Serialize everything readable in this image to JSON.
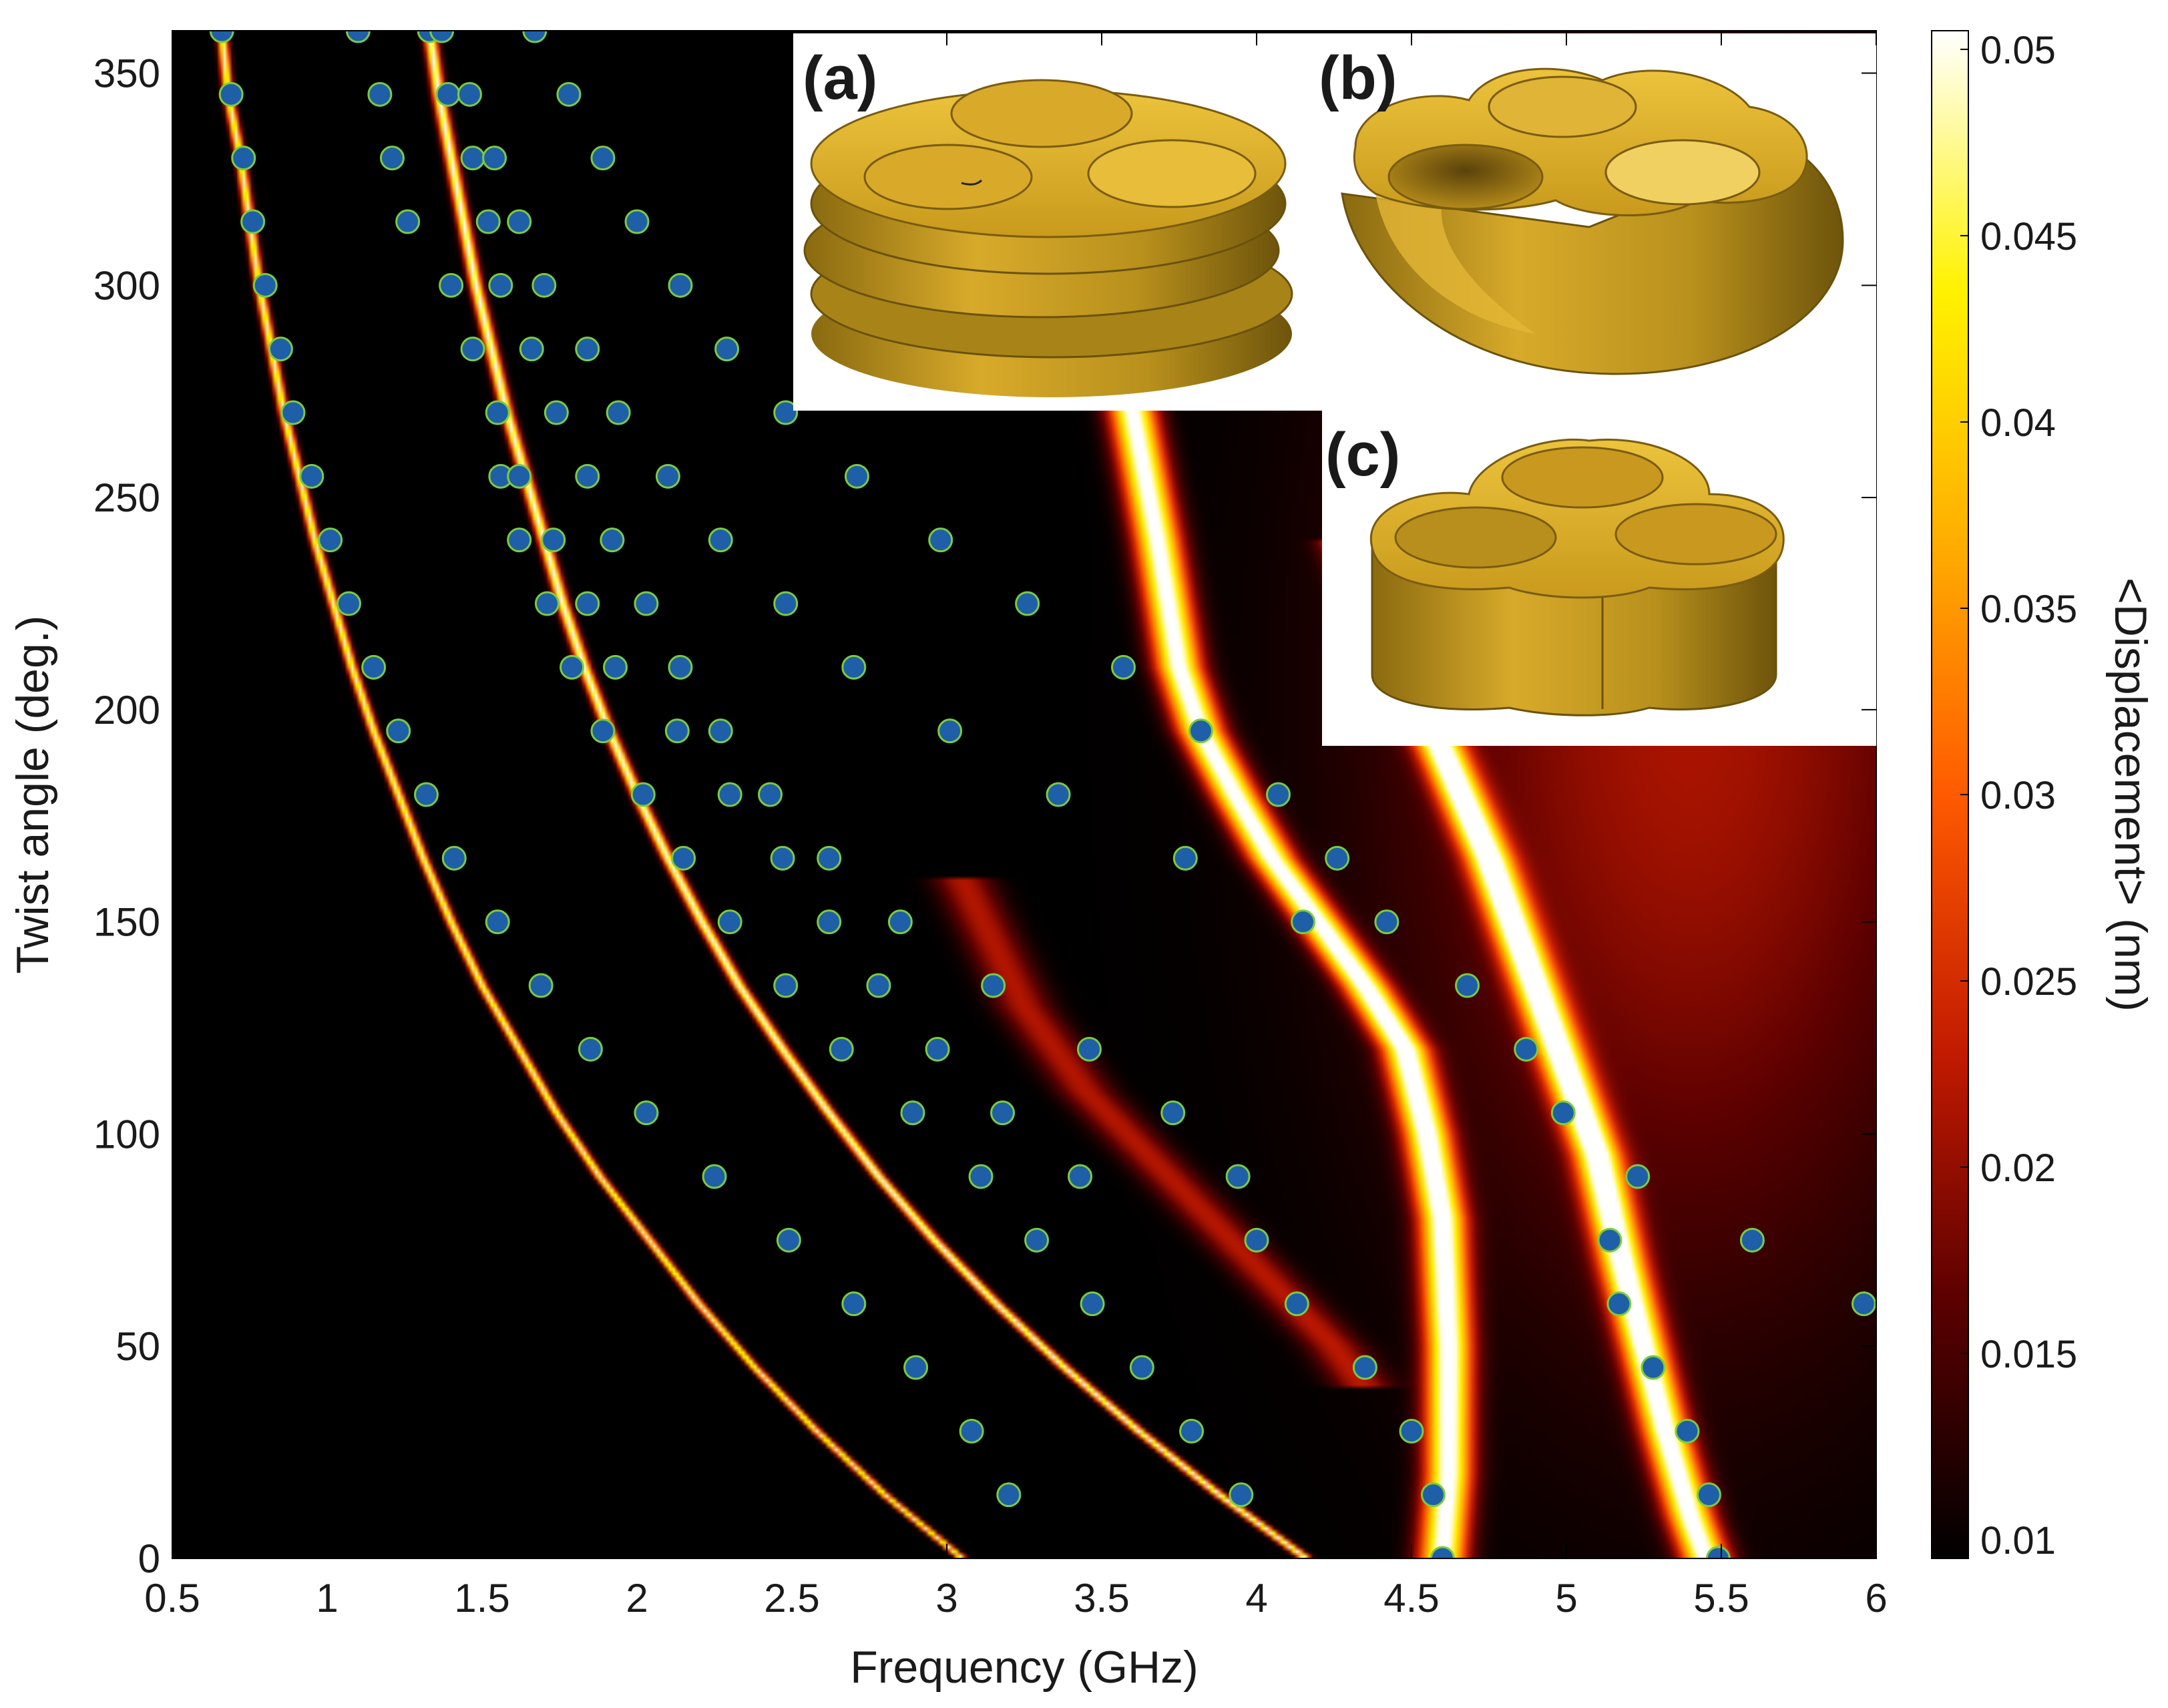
{
  "chart_data": {
    "type": "heatmap",
    "xlabel": "Frequency (GHz)",
    "ylabel": "Twist angle (deg.)",
    "colorbar_label": "<Displacement> (nm)",
    "xlim": [
      0.5,
      6
    ],
    "ylim": [
      0,
      360
    ],
    "xticks": [
      0.5,
      1,
      1.5,
      2,
      2.5,
      3,
      3.5,
      4,
      4.5,
      5,
      5.5,
      6
    ],
    "xtick_labels": [
      "0.5",
      "1",
      "1.5",
      "2",
      "2.5",
      "3",
      "3.5",
      "4",
      "4.5",
      "5",
      "5.5",
      "6"
    ],
    "yticks": [
      0,
      50,
      100,
      150,
      200,
      250,
      300,
      350
    ],
    "ytick_labels": [
      "0",
      "50",
      "100",
      "150",
      "200",
      "250",
      "300",
      "350"
    ],
    "colorbar_range": [
      0.0095,
      0.0505
    ],
    "colorbar_ticks": [
      0.01,
      0.015,
      0.02,
      0.025,
      0.03,
      0.035,
      0.04,
      0.045,
      0.05
    ],
    "colorbar_tick_labels": [
      "0.01",
      "0.015",
      "0.02",
      "0.025",
      "0.03",
      "0.035",
      "0.04",
      "0.045",
      "0.05"
    ],
    "colormap": [
      "#000000",
      "#5c0000",
      "#c21a00",
      "#ff5a00",
      "#ffb000",
      "#fff200",
      "#ffffff"
    ],
    "marker_colors": {
      "face": "#1f5fa8",
      "edge": "#7ccc3c"
    },
    "branches": [
      {
        "points": [
          [
            0.66,
            360
          ],
          [
            0.68,
            345
          ],
          [
            0.72,
            330
          ],
          [
            0.75,
            315
          ],
          [
            0.78,
            300
          ],
          [
            0.82,
            285
          ],
          [
            0.86,
            270
          ],
          [
            0.91,
            255
          ],
          [
            0.96,
            240
          ],
          [
            1.02,
            225
          ],
          [
            1.08,
            210
          ],
          [
            1.15,
            195
          ],
          [
            1.23,
            180
          ],
          [
            1.31,
            165
          ],
          [
            1.4,
            150
          ],
          [
            1.5,
            135
          ],
          [
            1.62,
            120
          ],
          [
            1.74,
            105
          ],
          [
            1.88,
            90
          ],
          [
            2.04,
            75
          ],
          [
            2.2,
            60
          ],
          [
            2.38,
            45
          ],
          [
            2.58,
            30
          ],
          [
            2.8,
            15
          ],
          [
            3.05,
            0
          ]
        ],
        "width": 0.016,
        "peak": 0.048
      },
      {
        "points": [
          [
            1.33,
            360
          ],
          [
            1.36,
            345
          ],
          [
            1.4,
            330
          ],
          [
            1.44,
            315
          ],
          [
            1.48,
            300
          ],
          [
            1.53,
            285
          ],
          [
            1.58,
            270
          ],
          [
            1.64,
            255
          ],
          [
            1.7,
            240
          ],
          [
            1.76,
            225
          ],
          [
            1.83,
            210
          ],
          [
            1.91,
            195
          ],
          [
            2.0,
            180
          ],
          [
            2.1,
            165
          ],
          [
            2.21,
            150
          ],
          [
            2.33,
            135
          ],
          [
            2.47,
            120
          ],
          [
            2.62,
            105
          ],
          [
            2.78,
            90
          ],
          [
            2.96,
            75
          ],
          [
            3.16,
            60
          ],
          [
            3.38,
            45
          ],
          [
            3.62,
            30
          ],
          [
            3.88,
            15
          ],
          [
            4.16,
            0
          ]
        ],
        "width": 0.02,
        "peak": 0.05
      },
      {
        "points": [
          [
            3.55,
            300
          ],
          [
            3.6,
            270
          ],
          [
            3.68,
            240
          ],
          [
            3.75,
            210
          ],
          [
            3.82,
            195
          ],
          [
            3.93,
            180
          ],
          [
            4.05,
            165
          ],
          [
            4.2,
            150
          ],
          [
            4.35,
            135
          ],
          [
            4.48,
            120
          ],
          [
            4.55,
            100
          ],
          [
            4.6,
            80
          ],
          [
            4.62,
            50
          ],
          [
            4.62,
            20
          ],
          [
            4.6,
            0
          ]
        ],
        "width": 0.075,
        "peak": 0.052
      },
      {
        "points": [
          [
            4.3,
            240
          ],
          [
            4.48,
            210
          ],
          [
            4.6,
            190
          ],
          [
            4.75,
            165
          ],
          [
            4.9,
            135
          ],
          [
            5.0,
            115
          ],
          [
            5.1,
            95
          ],
          [
            5.18,
            70
          ],
          [
            5.25,
            50
          ],
          [
            5.32,
            30
          ],
          [
            5.4,
            10
          ],
          [
            5.45,
            0
          ]
        ],
        "width": 0.075,
        "peak": 0.052
      },
      {
        "points": [
          [
            3.05,
            160
          ],
          [
            3.25,
            130
          ],
          [
            3.45,
            110
          ],
          [
            3.65,
            95
          ],
          [
            3.85,
            80
          ],
          [
            4.05,
            65
          ],
          [
            4.25,
            50
          ],
          [
            4.35,
            40
          ]
        ],
        "width": 0.09,
        "peak": 0.022
      }
    ],
    "markers": [
      [
        0.66,
        360
      ],
      [
        1.1,
        360
      ],
      [
        1.33,
        360
      ],
      [
        1.37,
        360
      ],
      [
        1.67,
        360
      ],
      [
        0.69,
        345
      ],
      [
        1.17,
        345
      ],
      [
        1.39,
        345
      ],
      [
        1.46,
        345
      ],
      [
        1.78,
        345
      ],
      [
        0.73,
        330
      ],
      [
        1.21,
        330
      ],
      [
        1.47,
        330
      ],
      [
        1.54,
        330
      ],
      [
        1.89,
        330
      ],
      [
        0.76,
        315
      ],
      [
        1.26,
        315
      ],
      [
        1.52,
        315
      ],
      [
        1.62,
        315
      ],
      [
        2.0,
        315
      ],
      [
        0.8,
        300
      ],
      [
        1.4,
        300
      ],
      [
        1.56,
        300
      ],
      [
        1.7,
        300
      ],
      [
        2.14,
        300
      ],
      [
        0.85,
        285
      ],
      [
        1.47,
        285
      ],
      [
        1.66,
        285
      ],
      [
        1.84,
        285
      ],
      [
        2.29,
        285
      ],
      [
        0.89,
        270
      ],
      [
        1.55,
        270
      ],
      [
        1.74,
        270
      ],
      [
        1.94,
        270
      ],
      [
        2.48,
        270
      ],
      [
        0.95,
        255
      ],
      [
        1.56,
        255
      ],
      [
        1.62,
        255
      ],
      [
        1.84,
        255
      ],
      [
        2.1,
        255
      ],
      [
        2.71,
        255
      ],
      [
        1.01,
        240
      ],
      [
        1.62,
        240
      ],
      [
        1.73,
        240
      ],
      [
        1.92,
        240
      ],
      [
        2.27,
        240
      ],
      [
        2.98,
        240
      ],
      [
        1.07,
        225
      ],
      [
        1.71,
        225
      ],
      [
        1.84,
        225
      ],
      [
        2.03,
        225
      ],
      [
        2.48,
        225
      ],
      [
        3.26,
        225
      ],
      [
        1.15,
        210
      ],
      [
        1.79,
        210
      ],
      [
        1.93,
        210
      ],
      [
        2.14,
        210
      ],
      [
        2.7,
        210
      ],
      [
        3.57,
        210
      ],
      [
        1.23,
        195
      ],
      [
        1.89,
        195
      ],
      [
        2.13,
        195
      ],
      [
        2.27,
        195
      ],
      [
        3.01,
        195
      ],
      [
        3.82,
        195
      ],
      [
        1.32,
        180
      ],
      [
        2.02,
        180
      ],
      [
        2.3,
        180
      ],
      [
        2.43,
        180
      ],
      [
        3.36,
        180
      ],
      [
        4.07,
        180
      ],
      [
        1.41,
        165
      ],
      [
        2.15,
        165
      ],
      [
        2.47,
        165
      ],
      [
        2.62,
        165
      ],
      [
        3.77,
        165
      ],
      [
        4.26,
        165
      ],
      [
        1.55,
        150
      ],
      [
        2.3,
        150
      ],
      [
        2.62,
        150
      ],
      [
        2.85,
        150
      ],
      [
        4.15,
        150
      ],
      [
        4.42,
        150
      ],
      [
        1.69,
        135
      ],
      [
        2.48,
        135
      ],
      [
        2.78,
        135
      ],
      [
        3.15,
        135
      ],
      [
        4.68,
        135
      ],
      [
        1.85,
        120
      ],
      [
        2.66,
        120
      ],
      [
        2.97,
        120
      ],
      [
        3.46,
        120
      ],
      [
        4.87,
        120
      ],
      [
        2.03,
        105
      ],
      [
        2.89,
        105
      ],
      [
        3.18,
        105
      ],
      [
        3.73,
        105
      ],
      [
        4.99,
        105
      ],
      [
        2.25,
        90
      ],
      [
        3.11,
        90
      ],
      [
        3.43,
        90
      ],
      [
        3.94,
        90
      ],
      [
        5.23,
        90
      ],
      [
        2.49,
        75
      ],
      [
        3.29,
        75
      ],
      [
        4.0,
        75
      ],
      [
        5.14,
        75
      ],
      [
        5.6,
        75
      ],
      [
        2.7,
        60
      ],
      [
        3.47,
        60
      ],
      [
        4.13,
        60
      ],
      [
        5.17,
        60
      ],
      [
        5.96,
        60
      ],
      [
        2.9,
        45
      ],
      [
        3.63,
        45
      ],
      [
        4.35,
        45
      ],
      [
        5.28,
        45
      ],
      [
        3.08,
        30
      ],
      [
        3.79,
        30
      ],
      [
        4.5,
        30
      ],
      [
        5.39,
        30
      ],
      [
        3.2,
        15
      ],
      [
        3.95,
        15
      ],
      [
        4.57,
        15
      ],
      [
        5.46,
        15
      ],
      [
        4.6,
        0
      ],
      [
        5.49,
        0
      ]
    ]
  },
  "insets": {
    "a_label": "(a)",
    "b_label": "(b)",
    "c_label": "(c)"
  }
}
